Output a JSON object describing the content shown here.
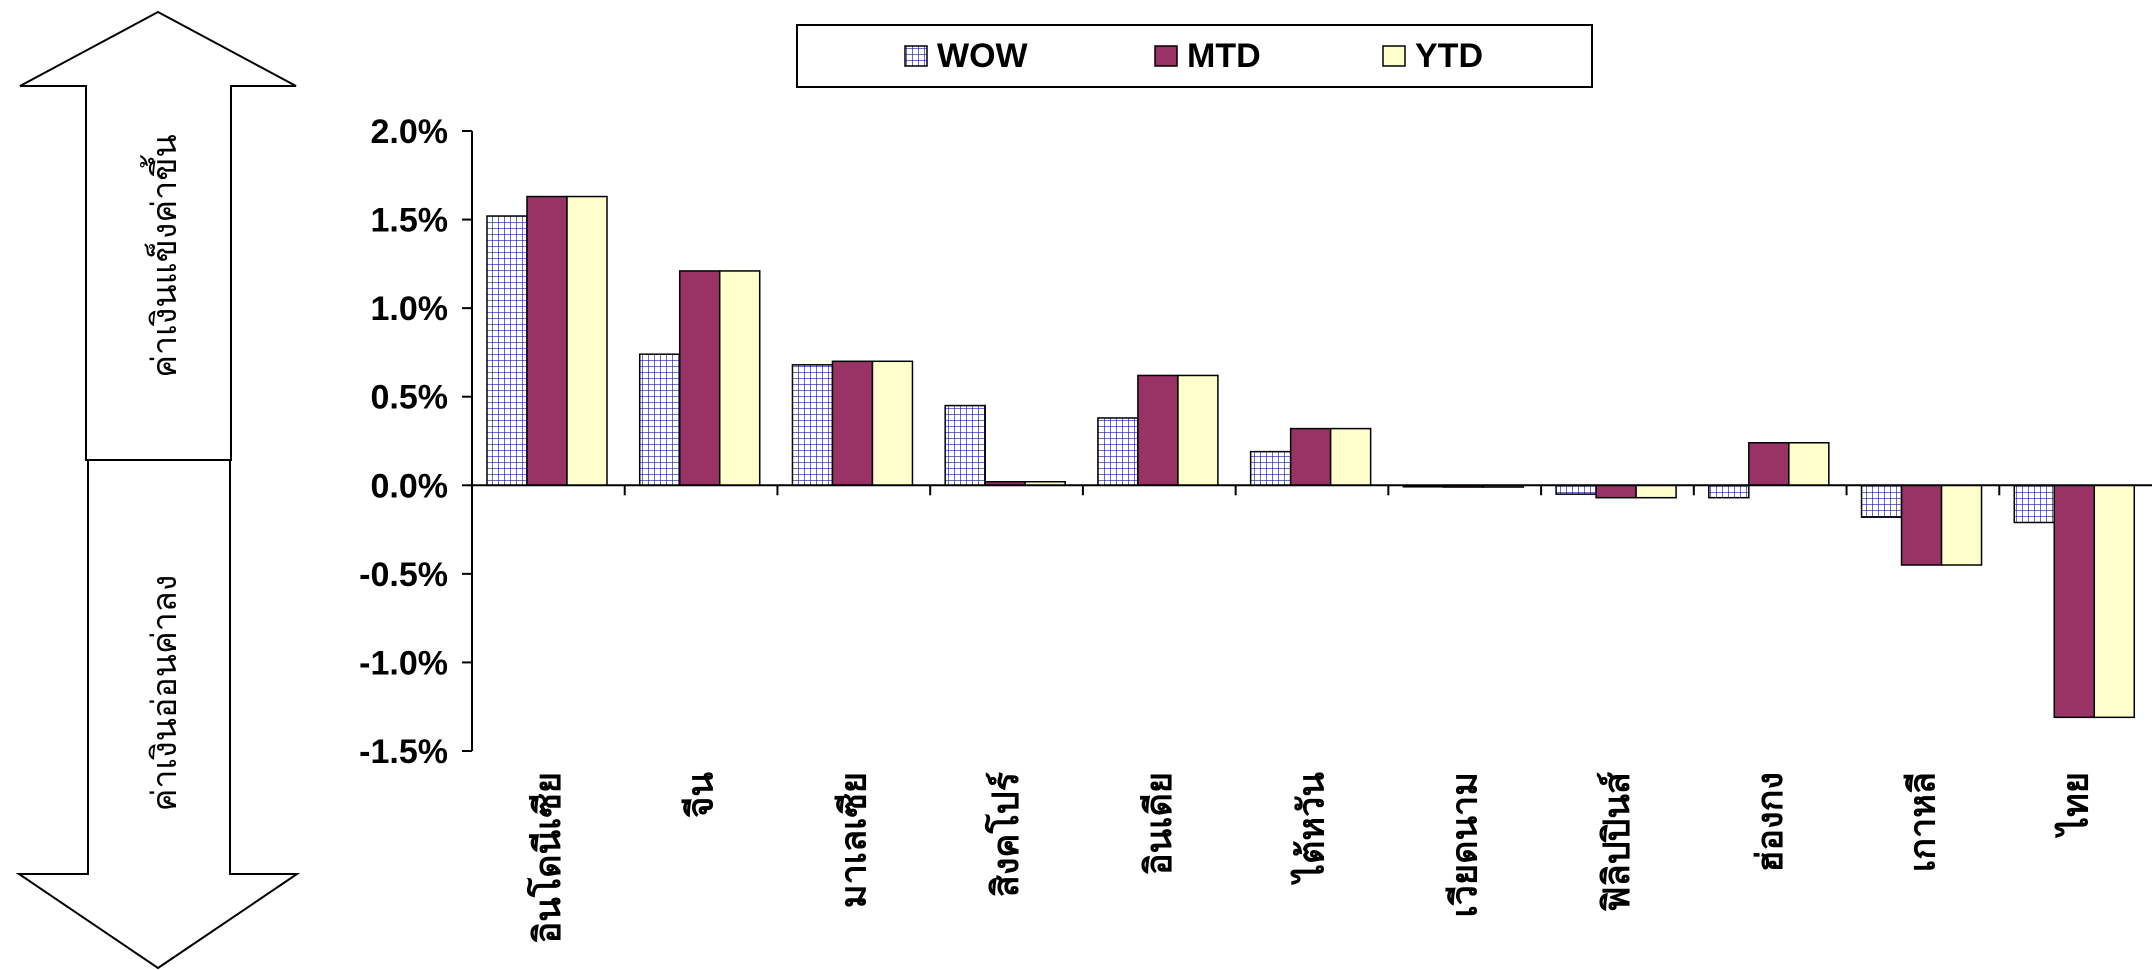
{
  "chart_data": {
    "type": "bar",
    "categories": [
      "อินโดนีเซีย",
      "จีน",
      "มาเลเซีย",
      "สิงคโปร์",
      "อินเดีย",
      "ไต้หวัน",
      "เวียดนาม",
      "ฟิลิปปินส์",
      "ฮ่องกง",
      "เกาหลี",
      "ไทย"
    ],
    "series": [
      {
        "name": "WOW",
        "values": [
          1.52,
          0.74,
          0.68,
          0.45,
          0.38,
          0.19,
          0.0,
          -0.05,
          -0.07,
          -0.18,
          -0.21
        ],
        "color": "#ffffff",
        "pattern": "grid-blue"
      },
      {
        "name": "MTD",
        "values": [
          1.63,
          1.21,
          0.7,
          0.02,
          0.62,
          0.32,
          -0.01,
          -0.07,
          0.24,
          -0.45,
          -1.31
        ],
        "color": "#993366"
      },
      {
        "name": "YTD",
        "values": [
          1.63,
          1.21,
          0.7,
          0.02,
          0.62,
          0.32,
          -0.01,
          -0.07,
          0.24,
          -0.45,
          -1.31
        ],
        "color": "#ffffcc"
      }
    ],
    "yticks": [
      "2.0%",
      "1.5%",
      "1.0%",
      "0.5%",
      "0.0%",
      "-0.5%",
      "-1.0%",
      "-1.5%"
    ],
    "ylim": [
      -1.5,
      2.0
    ],
    "legend_position": "top-center",
    "grid": false
  },
  "arrows": {
    "up_label": "ค่าเงินแข็งค่าขึ้น",
    "down_label": "ค่าเงินอ่อนค่าลง"
  }
}
